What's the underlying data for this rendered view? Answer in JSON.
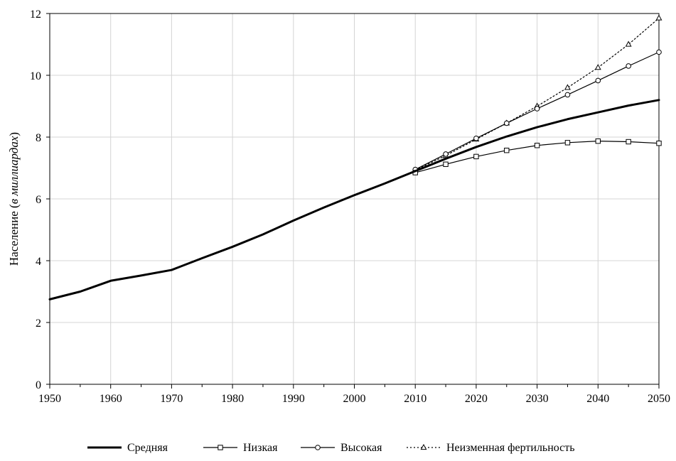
{
  "chart_data": {
    "type": "line",
    "xlabel": "",
    "ylabel": {
      "main": "Население",
      "open": " (",
      "italic": "в миллиардах",
      "close": ")"
    },
    "xlim": [
      1950,
      2050
    ],
    "ylim": [
      0,
      12
    ],
    "x_ticks": [
      1950,
      1960,
      1970,
      1980,
      1990,
      2000,
      2010,
      2020,
      2030,
      2040,
      2050
    ],
    "y_ticks": [
      0,
      2,
      4,
      6,
      8,
      10,
      12
    ],
    "grid": true,
    "legend_position": "bottom",
    "series": [
      {
        "name": "Средняя",
        "style": "thick-solid",
        "marker": "none",
        "points": [
          [
            1950,
            2.75
          ],
          [
            1955,
            3.0
          ],
          [
            1960,
            3.35
          ],
          [
            1965,
            3.52
          ],
          [
            1970,
            3.7
          ],
          [
            1975,
            4.08
          ],
          [
            1980,
            4.45
          ],
          [
            1985,
            4.85
          ],
          [
            1990,
            5.3
          ],
          [
            1995,
            5.72
          ],
          [
            2000,
            6.12
          ],
          [
            2005,
            6.5
          ],
          [
            2010,
            6.9
          ],
          [
            2015,
            7.3
          ],
          [
            2020,
            7.68
          ],
          [
            2025,
            8.02
          ],
          [
            2030,
            8.32
          ],
          [
            2035,
            8.58
          ],
          [
            2040,
            8.8
          ],
          [
            2045,
            9.02
          ],
          [
            2050,
            9.2
          ]
        ]
      },
      {
        "name": "Низкая",
        "style": "solid",
        "marker": "square",
        "points": [
          [
            2010,
            6.85
          ],
          [
            2015,
            7.12
          ],
          [
            2020,
            7.37
          ],
          [
            2025,
            7.57
          ],
          [
            2030,
            7.73
          ],
          [
            2035,
            7.82
          ],
          [
            2040,
            7.87
          ],
          [
            2045,
            7.85
          ],
          [
            2050,
            7.8
          ]
        ]
      },
      {
        "name": "Высокая",
        "style": "solid",
        "marker": "circle",
        "points": [
          [
            2010,
            6.95
          ],
          [
            2015,
            7.45
          ],
          [
            2020,
            7.96
          ],
          [
            2025,
            8.45
          ],
          [
            2030,
            8.92
          ],
          [
            2035,
            9.37
          ],
          [
            2040,
            9.83
          ],
          [
            2045,
            10.3
          ],
          [
            2050,
            10.75
          ]
        ]
      },
      {
        "name": "Неизменная фертильность",
        "style": "dotted",
        "marker": "triangle",
        "points": [
          [
            2010,
            6.93
          ],
          [
            2015,
            7.4
          ],
          [
            2020,
            7.93
          ],
          [
            2025,
            8.45
          ],
          [
            2030,
            9.0
          ],
          [
            2035,
            9.6
          ],
          [
            2040,
            10.25
          ],
          [
            2045,
            11.0
          ],
          [
            2050,
            11.85
          ]
        ]
      }
    ]
  }
}
